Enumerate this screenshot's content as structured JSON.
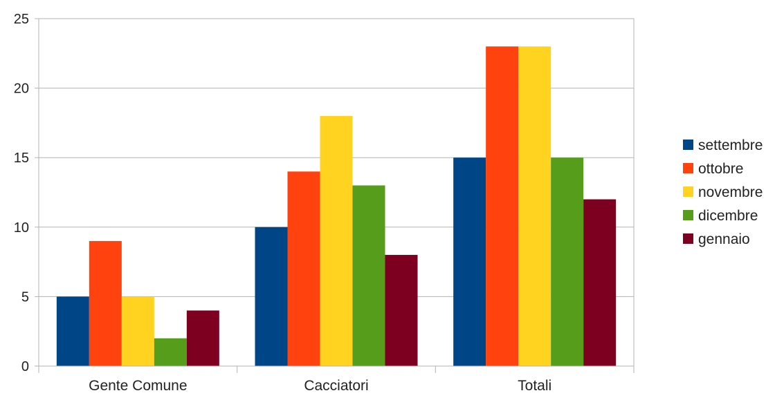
{
  "chart_data": {
    "type": "bar",
    "title": "",
    "xlabel": "",
    "ylabel": "",
    "categories": [
      "Gente Comune",
      "Cacciatori",
      "Totali"
    ],
    "series": [
      {
        "name": "settembre",
        "color": "#004586",
        "values": [
          5,
          10,
          15
        ]
      },
      {
        "name": "ottobre",
        "color": "#ff420e",
        "values": [
          9,
          14,
          23
        ]
      },
      {
        "name": "novembre",
        "color": "#ffd320",
        "values": [
          5,
          18,
          23
        ]
      },
      {
        "name": "dicembre",
        "color": "#579d1c",
        "values": [
          2,
          13,
          15
        ]
      },
      {
        "name": "gennaio",
        "color": "#7e0021",
        "values": [
          4,
          8,
          12
        ]
      }
    ],
    "ylim": [
      0,
      25
    ],
    "yticks": [
      0,
      5,
      10,
      15,
      20,
      25
    ],
    "grid": true,
    "legend_position": "right"
  }
}
